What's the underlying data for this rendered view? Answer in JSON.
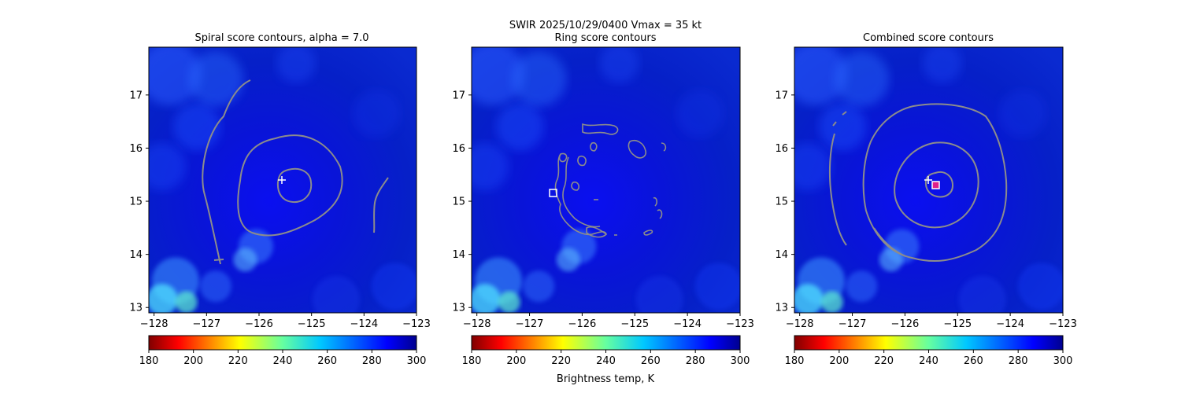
{
  "figure": {
    "suptitle_line1": "SWIR  2025/10/29/0400    Vmax = 35 kt",
    "colorbar_label": "Brightness temp, K",
    "colors": {
      "contour": "#8c8c8c",
      "marker": "#ffffff",
      "combined_marker_inner": "#e0208a"
    }
  },
  "chart_data": [
    {
      "type": "contour",
      "title": "Spiral score contours, alpha =  7.0",
      "xticks": [
        "−128",
        "−127",
        "−126",
        "−125",
        "−124",
        "−123"
      ],
      "yticks": [
        "17",
        "16",
        "15",
        "14",
        "13"
      ],
      "xlim": [
        -128.1,
        -123.0
      ],
      "ylim": [
        12.9,
        17.9
      ],
      "markers": [
        {
          "symbol": "plus",
          "lon": -125.45,
          "lat": 15.4
        }
      ],
      "colorbar": {
        "cmap": "jet_r",
        "range": [
          180,
          300
        ],
        "ticks": [
          "180",
          "200",
          "220",
          "240",
          "260",
          "280",
          "300"
        ]
      }
    },
    {
      "type": "contour",
      "title": "Ring score contours",
      "xticks": [
        "−128",
        "−127",
        "−126",
        "−125",
        "−124",
        "−123"
      ],
      "yticks": [
        "17",
        "16",
        "15",
        "14",
        "13"
      ],
      "xlim": [
        -128.1,
        -123.0
      ],
      "ylim": [
        12.9,
        17.9
      ],
      "markers": [
        {
          "symbol": "square",
          "lon": -126.55,
          "lat": 15.15
        }
      ],
      "colorbar": {
        "cmap": "jet_r",
        "range": [
          180,
          300
        ],
        "ticks": [
          "180",
          "200",
          "220",
          "240",
          "260",
          "280",
          "300"
        ]
      }
    },
    {
      "type": "contour",
      "title": "Combined score contours",
      "xticks": [
        "−128",
        "−127",
        "−126",
        "−125",
        "−124",
        "−123"
      ],
      "yticks": [
        "17",
        "16",
        "15",
        "14",
        "13"
      ],
      "xlim": [
        -128.1,
        -123.0
      ],
      "ylim": [
        12.9,
        17.9
      ],
      "markers": [
        {
          "symbol": "plus",
          "lon": -125.45,
          "lat": 15.4
        },
        {
          "symbol": "square",
          "lon": -125.3,
          "lat": 15.3
        }
      ],
      "colorbar": {
        "cmap": "jet_r",
        "range": [
          180,
          300
        ],
        "ticks": [
          "180",
          "200",
          "220",
          "240",
          "260",
          "280",
          "300"
        ]
      }
    }
  ]
}
